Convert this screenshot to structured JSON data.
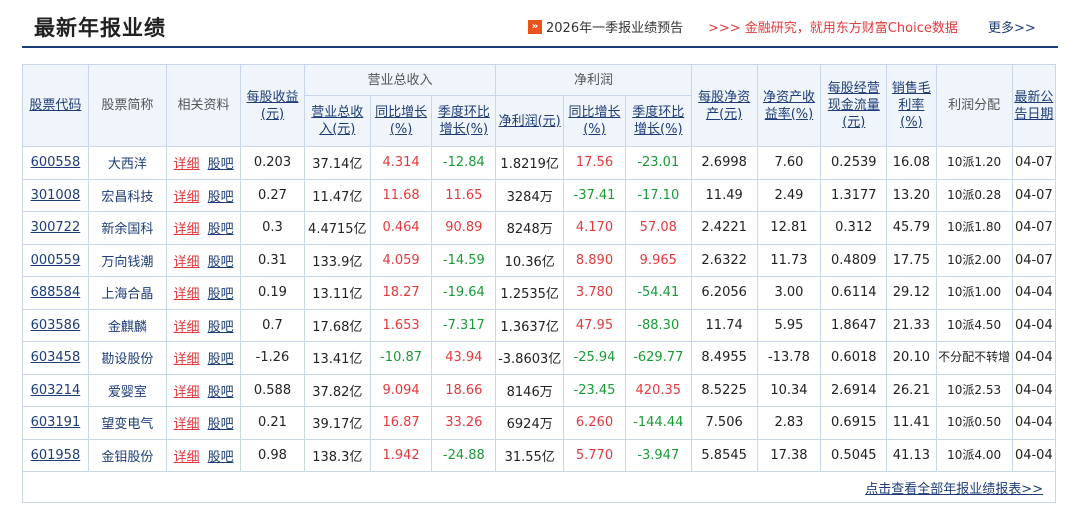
{
  "page_title": "最新年报业绩",
  "forecast_link": "2026年一季报业绩预告",
  "forecast_icon": "»",
  "promo_text": ">>> 金融研究，就用东方财富Choice数据",
  "more_link": "更多>>",
  "columns": {
    "code": "股票代码",
    "name": "股票简称",
    "related": "相关资料",
    "eps": "每股收益(元)",
    "revenue_group": "营业总收入",
    "revenue": "营业总收入(元)",
    "revenue_yoy": "同比增长(%)",
    "revenue_qoq": "季度环比增长(%)",
    "profit_group": "净利润",
    "profit": "净利润(元)",
    "profit_yoy": "同比增长(%)",
    "profit_qoq": "季度环比增长(%)",
    "bvps": "每股净资产(元)",
    "roe": "净资产收益率(%)",
    "cfps": "每股经营现金流量(元)",
    "gross_margin": "销售毛利率(%)",
    "distribution": "利润分配",
    "date": "最新公告日期"
  },
  "detail_label": "详细",
  "guba_label": "股吧",
  "rows": [
    {
      "code": "600558",
      "name": "大西洋",
      "eps": "0.203",
      "revenue": "37.14亿",
      "revenue_yoy": "4.314",
      "revenue_qoq": "-12.84",
      "profit": "1.8219亿",
      "profit_yoy": "17.56",
      "profit_qoq": "-23.01",
      "bvps": "2.6998",
      "roe": "7.60",
      "cfps": "0.2539",
      "gross_margin": "16.08",
      "distribution": "10派1.20",
      "date": "04-07"
    },
    {
      "code": "301008",
      "name": "宏昌科技",
      "eps": "0.27",
      "revenue": "11.47亿",
      "revenue_yoy": "11.68",
      "revenue_qoq": "11.65",
      "profit": "3284万",
      "profit_yoy": "-37.41",
      "profit_qoq": "-17.10",
      "bvps": "11.49",
      "roe": "2.49",
      "cfps": "1.3177",
      "gross_margin": "13.20",
      "distribution": "10派0.28",
      "date": "04-07"
    },
    {
      "code": "300722",
      "name": "新余国科",
      "eps": "0.3",
      "revenue": "4.4715亿",
      "revenue_yoy": "0.464",
      "revenue_qoq": "90.89",
      "profit": "8248万",
      "profit_yoy": "4.170",
      "profit_qoq": "57.08",
      "bvps": "2.4221",
      "roe": "12.81",
      "cfps": "0.312",
      "gross_margin": "45.79",
      "distribution": "10派1.80",
      "date": "04-07"
    },
    {
      "code": "000559",
      "name": "万向钱潮",
      "eps": "0.31",
      "revenue": "133.9亿",
      "revenue_yoy": "4.059",
      "revenue_qoq": "-14.59",
      "profit": "10.36亿",
      "profit_yoy": "8.890",
      "profit_qoq": "9.965",
      "bvps": "2.6322",
      "roe": "11.73",
      "cfps": "0.4809",
      "gross_margin": "17.75",
      "distribution": "10派2.00",
      "date": "04-07"
    },
    {
      "code": "688584",
      "name": "上海合晶",
      "eps": "0.19",
      "revenue": "13.11亿",
      "revenue_yoy": "18.27",
      "revenue_qoq": "-19.64",
      "profit": "1.2535亿",
      "profit_yoy": "3.780",
      "profit_qoq": "-54.41",
      "bvps": "6.2056",
      "roe": "3.00",
      "cfps": "0.6114",
      "gross_margin": "29.12",
      "distribution": "10派1.00",
      "date": "04-04"
    },
    {
      "code": "603586",
      "name": "金麒麟",
      "eps": "0.7",
      "revenue": "17.68亿",
      "revenue_yoy": "1.653",
      "revenue_qoq": "-7.317",
      "profit": "1.3637亿",
      "profit_yoy": "47.95",
      "profit_qoq": "-88.30",
      "bvps": "11.74",
      "roe": "5.95",
      "cfps": "1.8647",
      "gross_margin": "21.33",
      "distribution": "10派4.50",
      "date": "04-04"
    },
    {
      "code": "603458",
      "name": "勘设股份",
      "eps": "-1.26",
      "revenue": "13.41亿",
      "revenue_yoy": "-10.87",
      "revenue_qoq": "43.94",
      "profit": "-3.8603亿",
      "profit_yoy": "-25.94",
      "profit_qoq": "-629.77",
      "bvps": "8.4955",
      "roe": "-13.78",
      "cfps": "0.6018",
      "gross_margin": "20.10",
      "distribution": "不分配不转增",
      "date": "04-04"
    },
    {
      "code": "603214",
      "name": "爱婴室",
      "eps": "0.588",
      "revenue": "37.82亿",
      "revenue_yoy": "9.094",
      "revenue_qoq": "18.66",
      "profit": "8146万",
      "profit_yoy": "-23.45",
      "profit_qoq": "420.35",
      "bvps": "8.5225",
      "roe": "10.34",
      "cfps": "2.6914",
      "gross_margin": "26.21",
      "distribution": "10派2.53",
      "date": "04-04"
    },
    {
      "code": "603191",
      "name": "望变电气",
      "eps": "0.21",
      "revenue": "39.17亿",
      "revenue_yoy": "16.87",
      "revenue_qoq": "33.26",
      "profit": "6924万",
      "profit_yoy": "6.260",
      "profit_qoq": "-144.44",
      "bvps": "7.506",
      "roe": "2.83",
      "cfps": "0.6915",
      "gross_margin": "11.41",
      "distribution": "10派0.50",
      "date": "04-04"
    },
    {
      "code": "601958",
      "name": "金钼股份",
      "eps": "0.98",
      "revenue": "138.3亿",
      "revenue_yoy": "1.942",
      "revenue_qoq": "-24.88",
      "profit": "31.55亿",
      "profit_yoy": "5.770",
      "profit_qoq": "-3.947",
      "bvps": "5.8545",
      "roe": "17.38",
      "cfps": "0.5045",
      "gross_margin": "41.13",
      "distribution": "10派4.00",
      "date": "04-04"
    }
  ],
  "footer_link": "点击查看全部年报业绩报表>>",
  "colors": {
    "positive": "#e4393c",
    "negative": "#1a9a37",
    "link": "#1d3c78",
    "header_bg": "#f0f5fb"
  }
}
